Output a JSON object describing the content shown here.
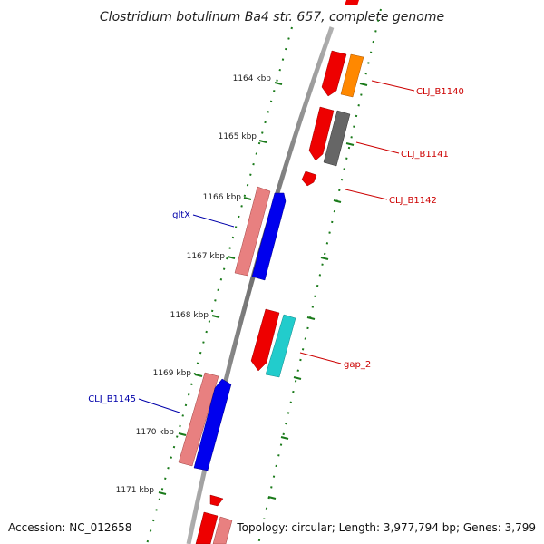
{
  "title": "Clostridium botulinum Ba4 str. 657, complete genome",
  "accession": "Accession: NC_012658",
  "summary": "Topology: circular; Length: 3,977,794 bp; Genes: 3,799",
  "kbp_ticks": [
    "1164 kbp",
    "1165 kbp",
    "1166 kbp",
    "1167 kbp",
    "1168 kbp",
    "1169 kbp",
    "1170 kbp",
    "1171 kbp"
  ],
  "gene_labels": {
    "clj_b1140": "CLJ_B1140",
    "clj_b1141": "CLJ_B1141",
    "clj_b1142": "CLJ_B1142",
    "gltx": "gltX",
    "gap_2": "gap_2",
    "clj_b1145": "CLJ_B1145"
  },
  "colors": {
    "reverse_label": "#cc0000",
    "forward_label": "#0000aa",
    "backbone": "#888888",
    "tick": "#1a7a1a",
    "cds_red": "#ee0000",
    "cds_pink": "#e88080",
    "cds_blue": "#0000ee",
    "cds_orange": "#ff8800",
    "cds_gray": "#666666",
    "cds_cyan": "#22cccc"
  }
}
